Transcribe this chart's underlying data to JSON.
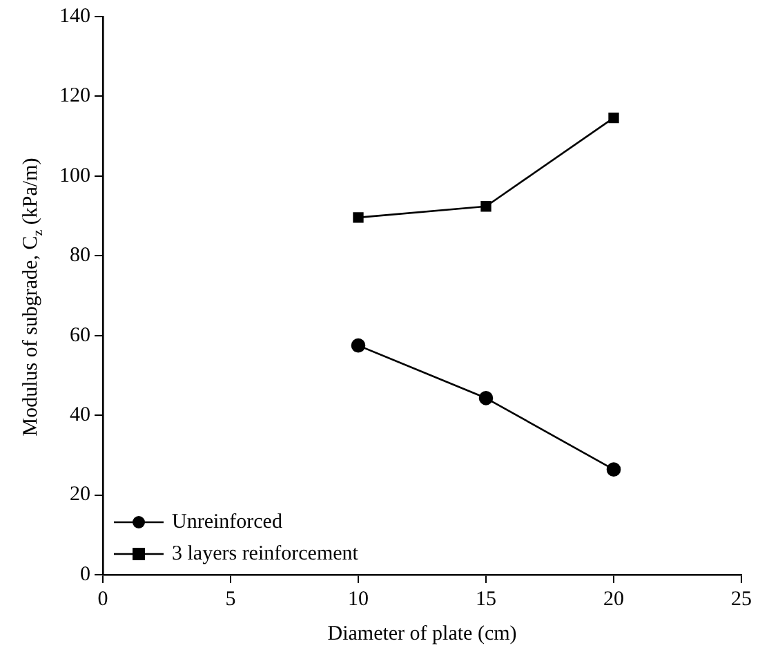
{
  "chart_data": {
    "type": "line",
    "xlabel": "Diameter of plate (cm)",
    "ylabel": "Modulus of subgrade, C$_{z}$ (kPa/m)",
    "x": [
      10,
      15,
      20
    ],
    "series": [
      {
        "name": "Unreinforced",
        "color": "#000000",
        "marker": "circle",
        "values": [
          57.5,
          44.3,
          26.4
        ]
      },
      {
        "name": "3 layers reinforcement",
        "color": "#000000",
        "marker": "square",
        "values": [
          89.6,
          92.4,
          114.6
        ]
      }
    ],
    "xlim": [
      0,
      25
    ],
    "xticks": [
      0,
      5,
      10,
      15,
      20,
      25
    ],
    "ylim": [
      0,
      140
    ],
    "yticks": [
      0,
      20,
      40,
      60,
      80,
      100,
      120,
      140
    ],
    "grid": false,
    "legend": "bottom left",
    "line_style": "solid"
  }
}
